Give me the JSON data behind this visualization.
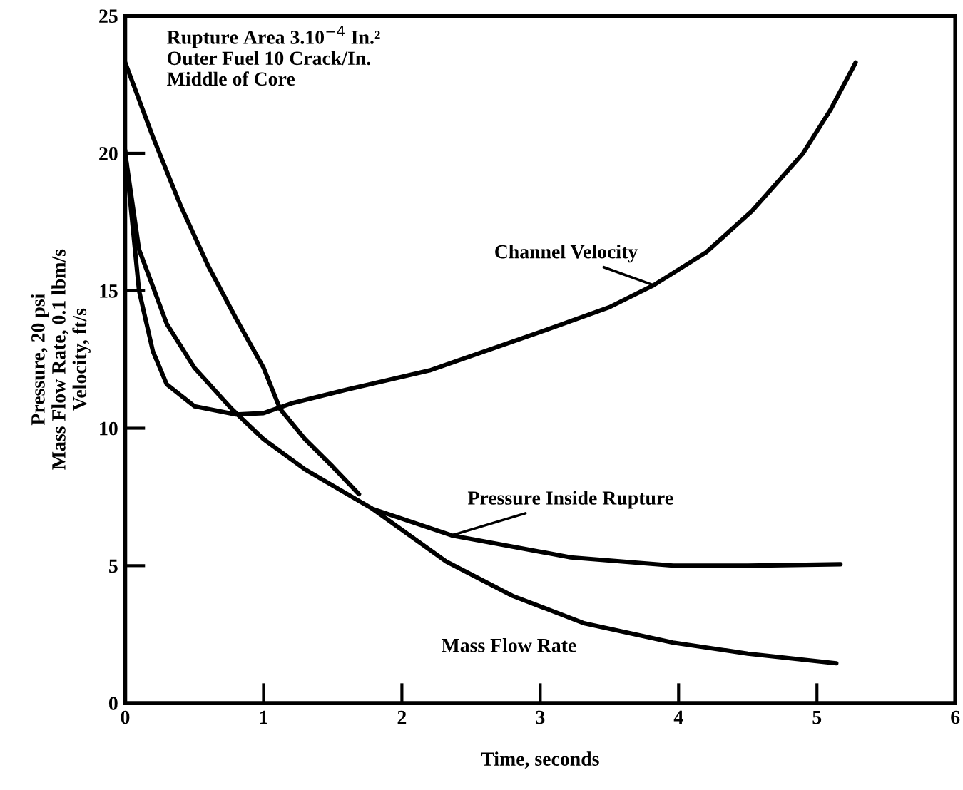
{
  "chart_data": {
    "type": "line",
    "xlabel": "Time, seconds",
    "ylabel": "Pressure, 20 psi\nMass Flow Rate, 0.1 lbm/s\nVelocity, ft/s",
    "xlim": [
      0,
      6
    ],
    "ylim": [
      0,
      25
    ],
    "xticks": [
      0,
      1,
      2,
      3,
      4,
      5,
      6
    ],
    "yticks": [
      0,
      5,
      10,
      15,
      20,
      25
    ],
    "grid": false,
    "legend": false,
    "marker": "none",
    "line_style": "solid",
    "series": [
      {
        "name": "Channel Velocity",
        "color": "#000000",
        "x": [
          0,
          0.1,
          0.2,
          0.3,
          0.5,
          0.8,
          1.0,
          1.2,
          1.6,
          2.2,
          3.0,
          3.5,
          3.82,
          4.2,
          4.53,
          4.9,
          5.1,
          5.28
        ],
        "values": [
          20.1,
          15,
          12.8,
          11.6,
          10.8,
          10.5,
          10.55,
          10.9,
          11.4,
          12.1,
          13.5,
          14.4,
          15.2,
          16.4,
          17.9,
          20,
          21.6,
          23.3
        ]
      },
      {
        "color": "#000000",
        "x": [
          0,
          0.2,
          0.4,
          0.6,
          0.8,
          1.0,
          1.12,
          1.3,
          1.5,
          1.69
        ],
        "values": [
          23.3,
          20.6,
          18.1,
          15.9,
          14,
          12.2,
          10.7,
          9.6,
          8.6,
          7.6
        ]
      },
      {
        "name": "Pressure Inside Rupture",
        "color": "#000000",
        "x": [
          0,
          0.1,
          0.3,
          0.5,
          0.77,
          1.0,
          1.3,
          1.79,
          2.36,
          3.22,
          3.96,
          4.5,
          5.17
        ],
        "values": [
          20,
          16.5,
          13.8,
          12.2,
          10.7,
          9.6,
          8.5,
          7.06,
          6.1,
          5.3,
          5.0,
          5.0,
          5.05
        ]
      },
      {
        "name": "Mass Flow Rate",
        "color": "#000000",
        "x": [
          1.79,
          2.32,
          2.8,
          3.32,
          3.96,
          4.5,
          5.14
        ],
        "values": [
          7.06,
          5.15,
          3.9,
          2.9,
          2.2,
          1.8,
          1.45
        ]
      }
    ],
    "annotations": [
      "Rupture Area 3.10$^{−4}$ In.²\nOuter Fuel 10 Crack/In.\nMiddle of Core"
    ]
  }
}
